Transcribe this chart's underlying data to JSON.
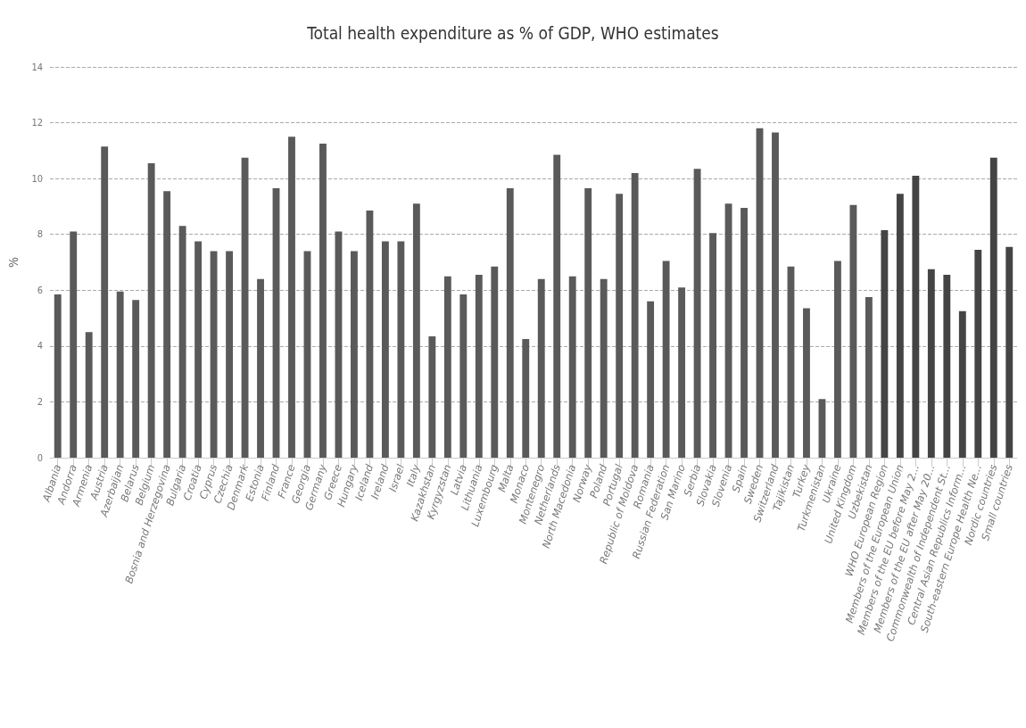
{
  "chart_data": {
    "type": "bar",
    "title": "Total health expenditure as % of GDP, WHO estimates",
    "ylabel": "%",
    "categories": [
      "Albania",
      "Andorra",
      "Armenia",
      "Austria",
      "Azerbaijan",
      "Belarus",
      "Belgium",
      "Bosnia and Herzegovina",
      "Bulgaria",
      "Croatia",
      "Cyprus",
      "Czechia",
      "Denmark",
      "Estonia",
      "Finland",
      "France",
      "Georgia",
      "Germany",
      "Greece",
      "Hungary",
      "Iceland",
      "Ireland",
      "Israel",
      "Italy",
      "Kazakhstan",
      "Kyrgyzstan",
      "Latvia",
      "Lithuania",
      "Luxembourg",
      "Malta",
      "Monaco",
      "Montenegro",
      "Netherlands",
      "North Macedonia",
      "Norway",
      "Poland",
      "Portugal",
      "Republic of Moldova",
      "Romania",
      "Russian Federation",
      "San Marino",
      "Serbia",
      "Slovakia",
      "Slovenia",
      "Spain",
      "Sweden",
      "Switzerland",
      "Tajikistan",
      "Turkey",
      "Turkmenistan",
      "Ukraine",
      "United Kingdom",
      "Uzbekistan",
      "WHO European Region",
      "Members of the European Union",
      "Members of the EU before May 2...",
      "Members of the EU after May 20...",
      "Commonwealth of Independent St...",
      "Central Asian Republics Inform...",
      "South-eastern Europe Health Ne...",
      "Nordic countries",
      "Small countries"
    ],
    "values": [
      5.85,
      8.1,
      4.5,
      11.15,
      5.95,
      5.65,
      10.55,
      9.55,
      8.3,
      7.75,
      7.4,
      7.4,
      10.75,
      6.4,
      9.65,
      11.5,
      7.4,
      11.25,
      8.1,
      7.4,
      8.85,
      7.75,
      7.75,
      9.1,
      4.35,
      6.5,
      5.85,
      6.55,
      6.85,
      9.65,
      4.25,
      6.4,
      10.85,
      6.5,
      9.65,
      6.4,
      9.45,
      10.2,
      5.6,
      7.05,
      6.1,
      10.35,
      8.05,
      9.1,
      8.95,
      11.8,
      11.65,
      6.85,
      5.35,
      2.1,
      7.05,
      9.05,
      5.75,
      8.15,
      9.45,
      10.1,
      6.75,
      6.55,
      5.25,
      7.45,
      10.75,
      7.55
    ],
    "colors": [
      "#5a5a5a",
      "#5a5a5a",
      "#5a5a5a",
      "#5a5a5a",
      "#5a5a5a",
      "#5a5a5a",
      "#5a5a5a",
      "#5a5a5a",
      "#5a5a5a",
      "#5a5a5a",
      "#5a5a5a",
      "#5a5a5a",
      "#5a5a5a",
      "#5a5a5a",
      "#5a5a5a",
      "#5a5a5a",
      "#5a5a5a",
      "#5a5a5a",
      "#5a5a5a",
      "#5a5a5a",
      "#5a5a5a",
      "#5a5a5a",
      "#5a5a5a",
      "#5a5a5a",
      "#5a5a5a",
      "#5a5a5a",
      "#5a5a5a",
      "#5a5a5a",
      "#5a5a5a",
      "#5a5a5a",
      "#5a5a5a",
      "#5a5a5a",
      "#5a5a5a",
      "#5a5a5a",
      "#5a5a5a",
      "#5a5a5a",
      "#5a5a5a",
      "#5a5a5a",
      "#5a5a5a",
      "#5a5a5a",
      "#5a5a5a",
      "#5a5a5a",
      "#5a5a5a",
      "#5a5a5a",
      "#5a5a5a",
      "#5a5a5a",
      "#5a5a5a",
      "#5a5a5a",
      "#5a5a5a",
      "#5a5a5a",
      "#5a5a5a",
      "#5a5a5a",
      "#5a5a5a",
      "#444444",
      "#444444",
      "#444444",
      "#444444",
      "#444444",
      "#444444",
      "#444444",
      "#444444",
      "#444444"
    ],
    "ylim": [
      0,
      14
    ],
    "yticks": [
      0,
      2,
      4,
      6,
      8,
      10,
      12,
      14
    ],
    "grid": "y"
  }
}
